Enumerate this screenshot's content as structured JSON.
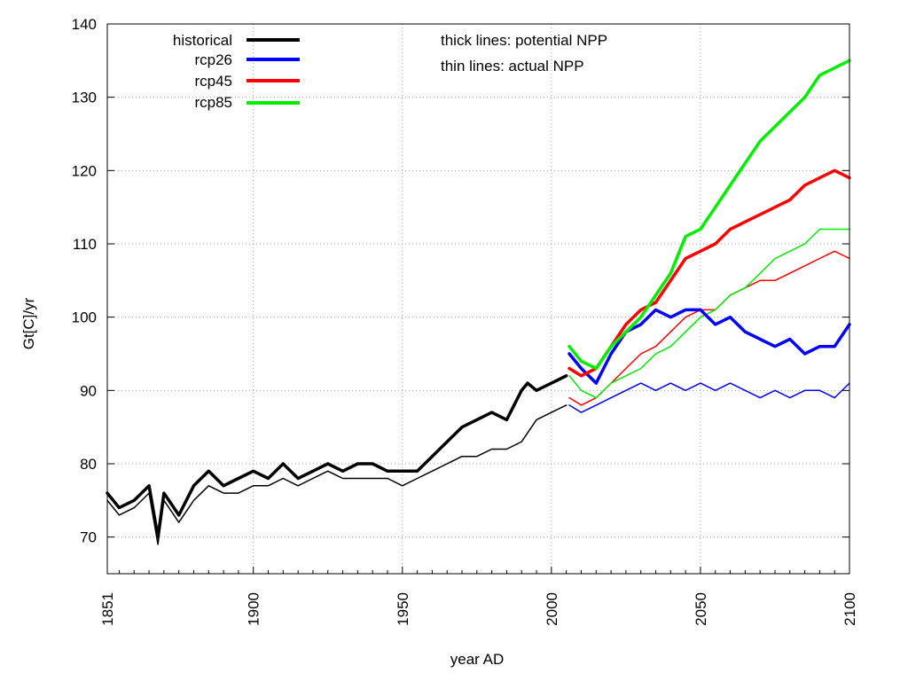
{
  "chart_data": {
    "type": "line",
    "title": "",
    "xlabel": "year AD",
    "ylabel": "Gt[C]/yr",
    "xlim": [
      1851,
      2100
    ],
    "ylim": [
      65,
      140
    ],
    "xticks": [
      1851,
      1900,
      1950,
      2000,
      2050,
      2100
    ],
    "yticks": [
      70,
      80,
      90,
      100,
      110,
      120,
      130,
      140
    ],
    "x_minor_step": 5,
    "grid": true,
    "legend_position": "top-left",
    "annotations": [
      "thick lines: potential NPP",
      "thin lines: actual NPP"
    ],
    "series": [
      {
        "name": "historical",
        "color": "#000000",
        "style": "thick",
        "x": [
          1851,
          1855,
          1860,
          1865,
          1868,
          1870,
          1875,
          1880,
          1885,
          1890,
          1895,
          1900,
          1905,
          1910,
          1915,
          1920,
          1925,
          1930,
          1935,
          1940,
          1945,
          1950,
          1955,
          1960,
          1965,
          1970,
          1975,
          1980,
          1985,
          1990,
          1992,
          1995,
          2000,
          2005
        ],
        "y": [
          76,
          74,
          75,
          77,
          70,
          76,
          73,
          77,
          79,
          77,
          78,
          79,
          78,
          80,
          78,
          79,
          80,
          79,
          80,
          80,
          79,
          79,
          79,
          81,
          83,
          85,
          86,
          87,
          86,
          90,
          91,
          90,
          91,
          92
        ]
      },
      {
        "name": "",
        "color": "#000000",
        "style": "thin",
        "x": [
          1851,
          1855,
          1860,
          1865,
          1868,
          1870,
          1875,
          1880,
          1885,
          1890,
          1895,
          1900,
          1905,
          1910,
          1915,
          1920,
          1925,
          1930,
          1935,
          1940,
          1945,
          1950,
          1955,
          1960,
          1965,
          1970,
          1975,
          1980,
          1985,
          1990,
          1995,
          2000,
          2005
        ],
        "y": [
          75,
          73,
          74,
          76,
          69,
          75,
          72,
          75,
          77,
          76,
          76,
          77,
          77,
          78,
          77,
          78,
          79,
          78,
          78,
          78,
          78,
          77,
          78,
          79,
          80,
          81,
          81,
          82,
          82,
          83,
          86,
          87,
          88
        ]
      },
      {
        "name": "rcp26",
        "color": "#0000ff",
        "style": "thick",
        "x": [
          2006,
          2010,
          2015,
          2020,
          2025,
          2030,
          2035,
          2040,
          2045,
          2050,
          2055,
          2060,
          2065,
          2070,
          2075,
          2080,
          2085,
          2090,
          2095,
          2100
        ],
        "y": [
          95,
          93,
          91,
          95,
          98,
          99,
          101,
          100,
          101,
          101,
          99,
          100,
          98,
          97,
          96,
          97,
          95,
          96,
          96,
          99
        ]
      },
      {
        "name": "",
        "color": "#0000ff",
        "style": "thin",
        "x": [
          2006,
          2010,
          2015,
          2020,
          2025,
          2030,
          2035,
          2040,
          2045,
          2050,
          2055,
          2060,
          2065,
          2070,
          2075,
          2080,
          2085,
          2090,
          2095,
          2100
        ],
        "y": [
          88,
          87,
          88,
          89,
          90,
          91,
          90,
          91,
          90,
          91,
          90,
          91,
          90,
          89,
          90,
          89,
          90,
          90,
          89,
          91
        ]
      },
      {
        "name": "rcp45",
        "color": "#ff0000",
        "style": "thick",
        "x": [
          2006,
          2010,
          2015,
          2020,
          2025,
          2030,
          2035,
          2040,
          2045,
          2050,
          2055,
          2060,
          2065,
          2070,
          2075,
          2080,
          2085,
          2090,
          2095,
          2100
        ],
        "y": [
          93,
          92,
          93,
          96,
          99,
          101,
          102,
          105,
          108,
          109,
          110,
          112,
          113,
          114,
          115,
          116,
          118,
          119,
          120,
          119
        ]
      },
      {
        "name": "",
        "color": "#ff0000",
        "style": "thin",
        "x": [
          2006,
          2010,
          2015,
          2020,
          2025,
          2030,
          2035,
          2040,
          2045,
          2050,
          2055,
          2060,
          2065,
          2070,
          2075,
          2080,
          2085,
          2090,
          2095,
          2100
        ],
        "y": [
          89,
          88,
          89,
          91,
          93,
          95,
          96,
          98,
          100,
          101,
          101,
          103,
          104,
          105,
          105,
          106,
          107,
          108,
          109,
          108
        ]
      },
      {
        "name": "rcp85",
        "color": "#00ee00",
        "style": "thick",
        "x": [
          2006,
          2010,
          2015,
          2020,
          2025,
          2030,
          2035,
          2040,
          2045,
          2050,
          2055,
          2060,
          2065,
          2070,
          2075,
          2080,
          2085,
          2090,
          2095,
          2100
        ],
        "y": [
          96,
          94,
          93,
          96,
          98,
          100,
          103,
          106,
          111,
          112,
          115,
          118,
          121,
          124,
          126,
          128,
          130,
          133,
          134,
          135
        ]
      },
      {
        "name": "",
        "color": "#00ee00",
        "style": "thin",
        "x": [
          2006,
          2010,
          2015,
          2020,
          2025,
          2030,
          2035,
          2040,
          2045,
          2050,
          2055,
          2060,
          2065,
          2070,
          2075,
          2080,
          2085,
          2090,
          2095,
          2100
        ],
        "y": [
          92,
          90,
          89,
          91,
          92,
          93,
          95,
          96,
          98,
          100,
          101,
          103,
          104,
          106,
          108,
          109,
          110,
          112,
          112,
          112
        ]
      }
    ]
  }
}
